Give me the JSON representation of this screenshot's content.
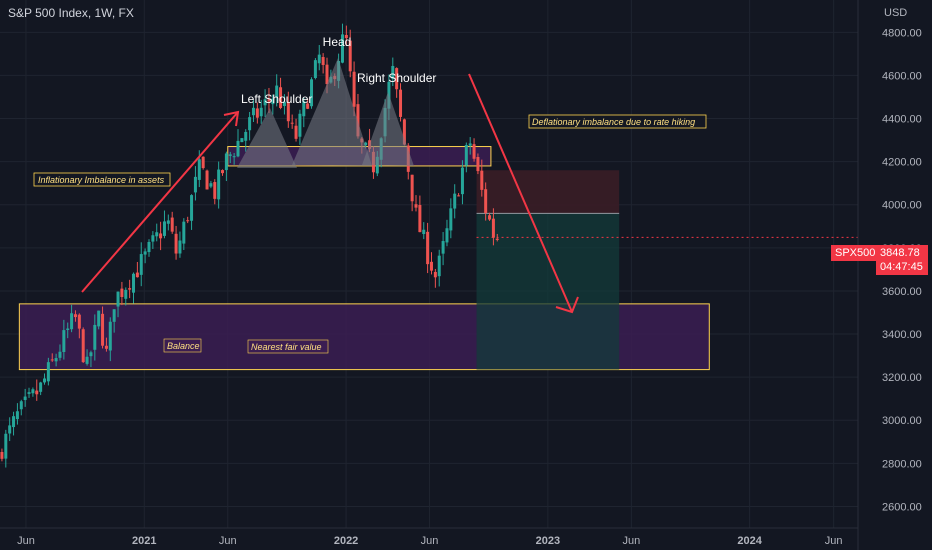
{
  "header": {
    "title": "S&P 500 Index, 1W, FX"
  },
  "axis": {
    "currency": "USD"
  },
  "colors": {
    "background": "#131722",
    "grid": "#1f2430",
    "up": "#26a69a",
    "down": "#ef5350",
    "zone_purple": "#3b1d52",
    "zone_border": "#ffd54f",
    "arrow": "#f23645",
    "sl_zone": "#3a1d26",
    "tp_zone": "#133b3a",
    "price_tag": "#f23645"
  },
  "symbol_badge": {
    "symbol": "SPX500",
    "price": "3848.78",
    "countdown": "04:47:45"
  },
  "annotations": {
    "head": "Head",
    "left_shoulder": "Left Shoulder",
    "right_shoulder": "Right Shoulder",
    "inflationary": "Inflationary Imbalance in assets",
    "deflationary": "Deflationary imbalance due to rate hiking",
    "balance": "Balance",
    "fair_value": "Nearest fair value"
  },
  "chart_data": {
    "type": "candlestick",
    "title": "S&P 500 Index, 1W, FX",
    "ylim": [
      2500,
      4950
    ],
    "y_ticks": [
      2600,
      2800,
      3000,
      3200,
      3400,
      3600,
      3800,
      4000,
      4200,
      4400,
      4600,
      4800
    ],
    "y_tick_labels": [
      "2600.00",
      "2800.00",
      "3000.00",
      "3200.00",
      "3400.00",
      "3600.00",
      "3800.00",
      "4000.00",
      "4200.00",
      "4400.00",
      "4600.00",
      "4800.00"
    ],
    "x_ticks": [
      "Jun",
      "2021",
      "Jun",
      "2022",
      "Jun",
      "2023",
      "Jun",
      "2024",
      "Jun"
    ],
    "x_tick_dates": [
      "2020-06-01",
      "2021-01-01",
      "2021-06-01",
      "2022-01-01",
      "2022-06-01",
      "2023-01-01",
      "2023-06-01",
      "2024-01-01",
      "2024-06-01"
    ],
    "x_range": [
      "2020-04-15",
      "2024-07-15"
    ],
    "last_price": 3848.78,
    "anchor_path": [
      [
        "2020-04-15",
        2840
      ],
      [
        "2020-05-20",
        3020
      ],
      [
        "2020-07-01",
        3150
      ],
      [
        "2020-09-01",
        3480
      ],
      [
        "2020-09-23",
        3240
      ],
      [
        "2020-10-14",
        3480
      ],
      [
        "2020-10-30",
        3280
      ],
      [
        "2020-11-09",
        3550
      ],
      [
        "2021-01-05",
        3750
      ],
      [
        "2021-02-15",
        3930
      ],
      [
        "2021-03-04",
        3770
      ],
      [
        "2021-04-15",
        4170
      ],
      [
        "2021-05-12",
        4060
      ],
      [
        "2021-06-01",
        4200
      ],
      [
        "2021-07-15",
        4380
      ],
      [
        "2021-09-01",
        4530
      ],
      [
        "2021-10-04",
        4300
      ],
      [
        "2021-11-19",
        4700
      ],
      [
        "2021-12-01",
        4510
      ],
      [
        "2022-01-03",
        4800
      ],
      [
        "2022-01-24",
        4300
      ],
      [
        "2022-02-24",
        4180
      ],
      [
        "2022-03-29",
        4630
      ],
      [
        "2022-05-12",
        3930
      ],
      [
        "2022-06-16",
        3660
      ],
      [
        "2022-08-16",
        4300
      ],
      [
        "2022-09-13",
        3990
      ],
      [
        "2022-09-30",
        3848.78
      ]
    ],
    "zones": [
      {
        "label": "Inflationary Imbalance in assets",
        "from": "2021-06-01",
        "to": "2022-09-20",
        "top": 4270,
        "bottom": 4180
      },
      {
        "label": "Balance / Nearest fair value",
        "from": "2020-05-20",
        "to": "2023-10-20",
        "top": 3540,
        "bottom": 3235
      }
    ],
    "position": {
      "entry": 3960,
      "stop": 4160,
      "target": 3235,
      "from": "2022-08-25",
      "to": "2023-05-10"
    }
  }
}
